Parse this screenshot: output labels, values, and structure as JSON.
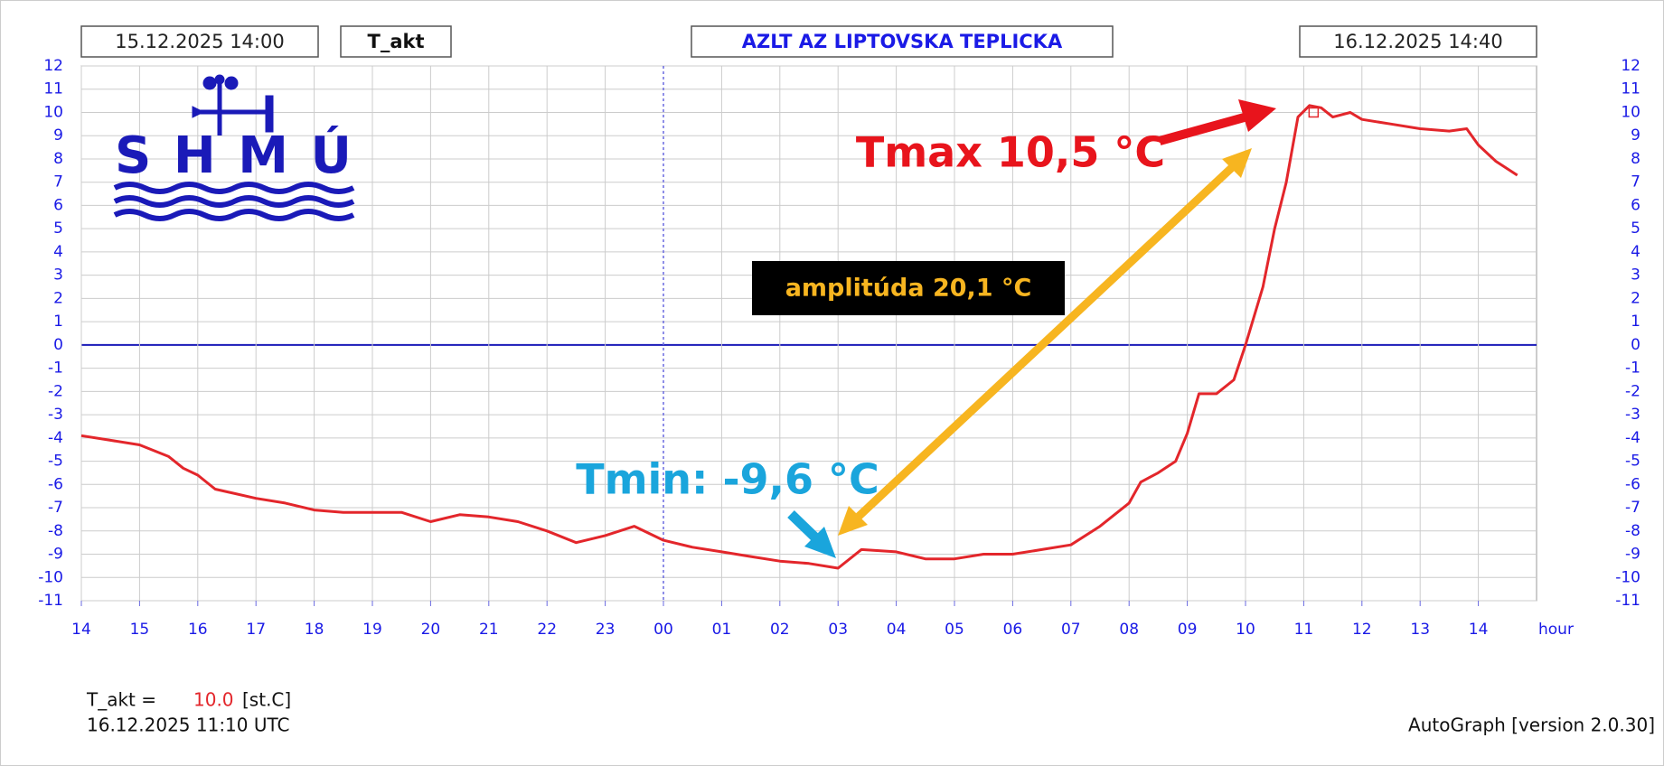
{
  "chart_data": {
    "type": "line",
    "title": "AZLT AZ LIPTOVSKA TEPLICKA",
    "start_label": "15.12.2025 14:00",
    "end_label": "16.12.2025 14:40",
    "xlabel": "hour",
    "logo": "SHMÚ",
    "x": [
      14,
      14.5,
      15,
      15.5,
      15.75,
      16,
      16.3,
      17,
      17.5,
      18,
      18.5,
      19,
      19.5,
      20,
      20.5,
      21,
      21.5,
      22,
      22.5,
      23,
      23.5,
      24,
      24.5,
      25,
      25.5,
      26,
      26.5,
      27,
      27.4,
      28,
      28.5,
      29,
      29.5,
      30,
      30.5,
      31,
      31.5,
      32,
      32.2,
      32.5,
      32.8,
      33,
      33.2,
      33.5,
      33.8,
      34,
      34.3,
      34.5,
      34.7,
      34.9,
      35.1,
      35.3,
      35.5,
      35.8,
      36,
      36.5,
      37,
      37.5,
      37.8,
      38,
      38.3,
      38.67
    ],
    "series": [
      {
        "name": "T_akt",
        "color": "#e3262b",
        "values": [
          -3.9,
          -4.1,
          -4.3,
          -4.8,
          -5.3,
          -5.6,
          -6.2,
          -6.6,
          -6.8,
          -7.1,
          -7.2,
          -7.2,
          -7.2,
          -7.6,
          -7.3,
          -7.4,
          -7.6,
          -8.0,
          -8.5,
          -8.2,
          -7.8,
          -8.4,
          -8.7,
          -8.9,
          -9.1,
          -9.3,
          -9.4,
          -9.6,
          -8.8,
          -8.9,
          -9.2,
          -9.2,
          -9.0,
          -9.0,
          -8.8,
          -8.6,
          -7.8,
          -6.8,
          -5.9,
          -5.5,
          -5.0,
          -3.8,
          -2.1,
          -2.1,
          -1.5,
          0.0,
          2.5,
          5.0,
          7.0,
          9.8,
          10.3,
          10.2,
          9.8,
          10.0,
          9.7,
          9.5,
          9.3,
          9.2,
          9.3,
          8.6,
          7.9,
          7.3
        ]
      }
    ],
    "current": {
      "x": 35.17,
      "value": 10,
      "value_label": "10.0",
      "prefix": "T_akt =",
      "unit": "[st.C]",
      "time": "16.12.2025 11:10 UTC"
    },
    "xlim": [
      14,
      39
    ],
    "xticks": [
      14,
      15,
      16,
      17,
      18,
      19,
      20,
      21,
      22,
      23,
      {
        "value": 24,
        "label": "00"
      },
      {
        "value": 25,
        "label": "01"
      },
      {
        "value": 26,
        "label": "02"
      },
      {
        "value": 27,
        "label": "03"
      },
      {
        "value": 28,
        "label": "04"
      },
      {
        "value": 29,
        "label": "05"
      },
      {
        "value": 30,
        "label": "06"
      },
      {
        "value": 31,
        "label": "07"
      },
      {
        "value": 32,
        "label": "08"
      },
      {
        "value": 33,
        "label": "09"
      },
      {
        "value": 34,
        "label": "10"
      },
      {
        "value": 35,
        "label": "11"
      },
      {
        "value": 36,
        "label": "12"
      },
      {
        "value": 37,
        "label": "13"
      },
      {
        "value": 38,
        "label": "14"
      }
    ],
    "ylim": [
      -11,
      12
    ],
    "yticks": [
      -11,
      -10,
      -9,
      -8,
      -7,
      -6,
      -5,
      -4,
      -3,
      -2,
      -1,
      0,
      1,
      2,
      3,
      4,
      5,
      6,
      7,
      8,
      9,
      10,
      11,
      12
    ],
    "grid": true,
    "annotations": {
      "tmax": "Tmax 10,5 °C",
      "tmin": "Tmin: -9,6 °C",
      "amplitude": "amplitúda 20,1 °C"
    },
    "footer": "AutoGraph [version 2.0.30]"
  }
}
